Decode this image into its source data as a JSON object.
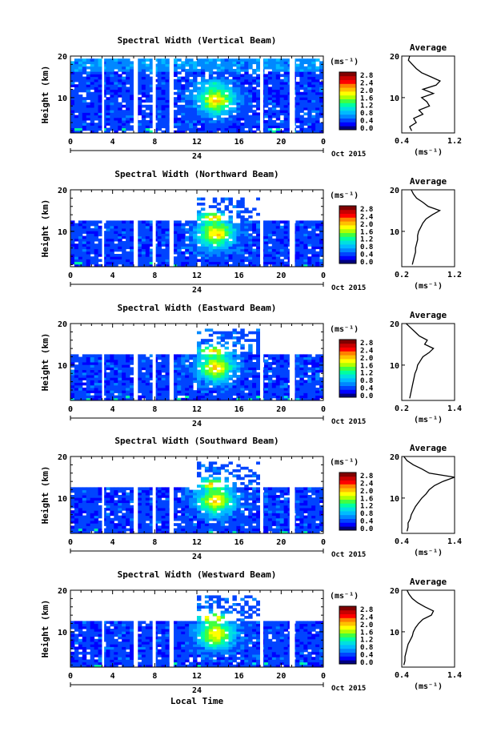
{
  "date_label": "Oct 2015",
  "xlabel": "Local Time",
  "ylabel": "Height (km)",
  "unit_label": "(ms⁻¹)",
  "profile_title": "Average",
  "profile_xlabel": "(ms⁻¹)",
  "day_label": "24",
  "colors": [
    "#000080",
    "#0000ff",
    "#0044ff",
    "#0088ff",
    "#00bbff",
    "#00e0e0",
    "#00ffa0",
    "#40ff40",
    "#b0ff00",
    "#ffff00",
    "#ffc000",
    "#ff8000",
    "#ff0000",
    "#c80000",
    "#800000"
  ],
  "chart_data": [
    {
      "type": "heatmap",
      "title": "Spectral Width (Vertical Beam)",
      "x_ticks": [
        "0",
        "4",
        "8",
        "12",
        "16",
        "20",
        "0"
      ],
      "x_range": [
        0,
        24
      ],
      "y_ticks": [
        "20",
        "10"
      ],
      "y_range": [
        1.5,
        20
      ],
      "colorbar_ticks": [
        "2.8",
        "2.4",
        "2.0",
        "1.6",
        "1.2",
        "0.8",
        "0.4",
        "0.0"
      ],
      "gaps": [
        [
          3.0,
          3.2
        ],
        [
          6.0,
          6.4
        ],
        [
          7.8,
          8.1
        ],
        [
          9.4,
          9.8
        ],
        [
          18.0,
          18.3
        ],
        [
          20.8,
          21.3
        ]
      ],
      "profile": {
        "x_ticks": [
          "0.4",
          "1.2"
        ],
        "x_range": [
          0.4,
          1.2
        ],
        "height": [
          2,
          3,
          4,
          5,
          6,
          7,
          8,
          9,
          10,
          11,
          12,
          13,
          14,
          15,
          16,
          17,
          18,
          19,
          20
        ],
        "width": [
          0.55,
          0.52,
          0.62,
          0.58,
          0.72,
          0.66,
          0.82,
          0.78,
          0.7,
          0.88,
          0.72,
          0.92,
          0.98,
          0.84,
          0.7,
          0.62,
          0.56,
          0.5,
          0.52
        ]
      }
    },
    {
      "type": "heatmap",
      "title": "Spectral Width (Northward Beam)",
      "x_ticks": [
        "0",
        "4",
        "8",
        "12",
        "16",
        "20",
        "0"
      ],
      "x_range": [
        0,
        24
      ],
      "y_ticks": [
        "20",
        "10"
      ],
      "y_range": [
        1.5,
        20
      ],
      "colorbar_ticks": [
        "2.8",
        "2.4",
        "2.0",
        "1.6",
        "1.2",
        "0.8",
        "0.4",
        "0.0"
      ],
      "gaps": [
        [
          3.0,
          3.2
        ],
        [
          6.0,
          6.4
        ],
        [
          7.8,
          8.1
        ],
        [
          9.4,
          9.8
        ],
        [
          18.0,
          18.3
        ],
        [
          20.8,
          21.3
        ]
      ],
      "profile": {
        "x_ticks": [
          "0.2",
          "1.2"
        ],
        "x_range": [
          0.2,
          1.2
        ],
        "height": [
          2,
          3,
          4,
          5,
          6,
          7,
          8,
          9,
          10,
          11,
          12,
          13,
          14,
          15,
          16,
          17,
          18,
          19,
          20
        ],
        "width": [
          0.4,
          0.42,
          0.44,
          0.46,
          0.46,
          0.48,
          0.5,
          0.5,
          0.52,
          0.56,
          0.6,
          0.66,
          0.78,
          0.92,
          0.7,
          0.6,
          0.48,
          0.42,
          0.38
        ]
      }
    },
    {
      "type": "heatmap",
      "title": "Spectral Width (Eastward Beam)",
      "x_ticks": [
        "0",
        "4",
        "8",
        "12",
        "16",
        "20",
        "0"
      ],
      "x_range": [
        0,
        24
      ],
      "y_ticks": [
        "20",
        "10"
      ],
      "y_range": [
        1.5,
        20
      ],
      "colorbar_ticks": [
        "2.8",
        "2.4",
        "2.0",
        "1.6",
        "1.2",
        "0.8",
        "0.4",
        "0.0"
      ],
      "gaps": [
        [
          3.0,
          3.2
        ],
        [
          6.0,
          6.4
        ],
        [
          7.8,
          8.1
        ],
        [
          9.4,
          9.8
        ],
        [
          18.0,
          18.3
        ],
        [
          20.8,
          21.3
        ]
      ],
      "profile": {
        "x_ticks": [
          "0.2",
          "1.4"
        ],
        "x_range": [
          0.2,
          1.4
        ],
        "height": [
          2,
          3,
          4,
          5,
          6,
          7,
          8,
          9,
          10,
          11,
          12,
          13,
          14,
          15,
          16,
          17,
          18,
          19,
          20
        ],
        "width": [
          0.38,
          0.4,
          0.42,
          0.44,
          0.46,
          0.48,
          0.5,
          0.54,
          0.56,
          0.62,
          0.68,
          0.82,
          0.92,
          0.72,
          0.78,
          0.6,
          0.5,
          0.4,
          0.3
        ]
      }
    },
    {
      "type": "heatmap",
      "title": "Spectral Width (Southward Beam)",
      "x_ticks": [
        "0",
        "4",
        "8",
        "12",
        "16",
        "20",
        "0"
      ],
      "x_range": [
        0,
        24
      ],
      "y_ticks": [
        "20",
        "10"
      ],
      "y_range": [
        1.5,
        20
      ],
      "colorbar_ticks": [
        "2.8",
        "2.4",
        "2.0",
        "1.6",
        "1.2",
        "0.8",
        "0.4",
        "0.0"
      ],
      "gaps": [
        [
          3.0,
          3.2
        ],
        [
          6.0,
          6.4
        ],
        [
          7.8,
          8.1
        ],
        [
          9.4,
          9.8
        ],
        [
          18.0,
          18.3
        ],
        [
          20.8,
          21.3
        ]
      ],
      "profile": {
        "x_ticks": [
          "0.4",
          "1.4"
        ],
        "x_range": [
          0.4,
          1.4
        ],
        "height": [
          2,
          3,
          4,
          5,
          6,
          7,
          8,
          9,
          10,
          11,
          12,
          13,
          14,
          15,
          16,
          17,
          18,
          19,
          20
        ],
        "width": [
          0.5,
          0.52,
          0.52,
          0.56,
          0.58,
          0.62,
          0.66,
          0.72,
          0.78,
          0.86,
          0.92,
          1.02,
          1.18,
          1.4,
          0.92,
          0.78,
          0.62,
          0.5,
          0.44
        ]
      }
    },
    {
      "type": "heatmap",
      "title": "Spectral Width (Westward Beam)",
      "x_ticks": [
        "0",
        "4",
        "8",
        "12",
        "16",
        "20",
        "0"
      ],
      "x_range": [
        0,
        24
      ],
      "y_ticks": [
        "20",
        "10"
      ],
      "y_range": [
        1.5,
        20
      ],
      "colorbar_ticks": [
        "2.8",
        "2.4",
        "2.0",
        "1.6",
        "1.2",
        "0.8",
        "0.4",
        "0.0"
      ],
      "gaps": [
        [
          3.0,
          3.2
        ],
        [
          6.0,
          6.4
        ],
        [
          7.8,
          8.1
        ],
        [
          9.4,
          9.8
        ],
        [
          18.0,
          18.3
        ],
        [
          20.8,
          21.3
        ]
      ],
      "profile": {
        "x_ticks": [
          "0.4",
          "1.4"
        ],
        "x_range": [
          0.4,
          1.4
        ],
        "height": [
          2,
          3,
          4,
          5,
          6,
          7,
          8,
          9,
          10,
          11,
          12,
          13,
          14,
          15,
          16,
          17,
          18,
          19,
          20
        ],
        "width": [
          0.44,
          0.46,
          0.46,
          0.48,
          0.5,
          0.52,
          0.56,
          0.6,
          0.62,
          0.66,
          0.72,
          0.8,
          0.96,
          1.0,
          0.84,
          0.7,
          0.6,
          0.54,
          0.5
        ]
      }
    }
  ]
}
